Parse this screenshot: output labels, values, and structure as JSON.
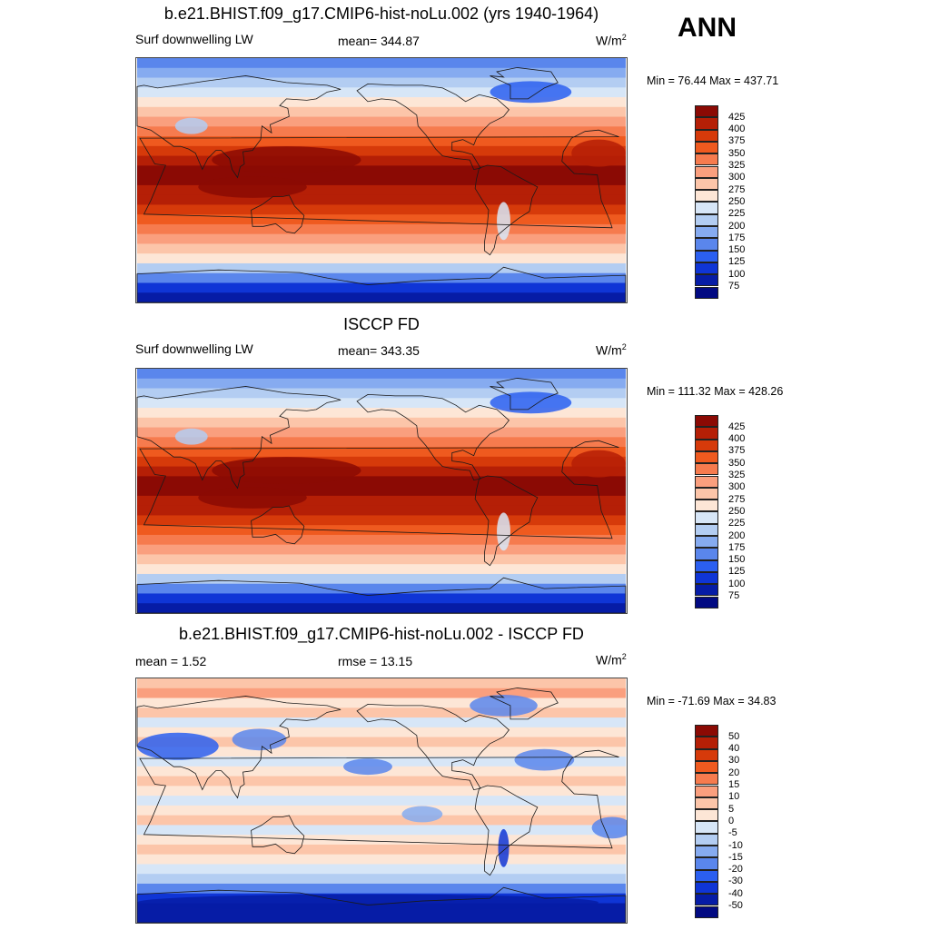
{
  "season": "ANN",
  "units_base": "W/m",
  "units_exp": "2",
  "panels": [
    {
      "title": "b.e21.BHIST.f09_g17.CMIP6-hist-noLu.002 (yrs 1940-1964)",
      "left_label": "Surf downwelling LW",
      "center_label": "mean= 344.87",
      "minmax": "Min =  76.44 Max = 437.71",
      "kind": "abs",
      "levels": [
        "425",
        "400",
        "375",
        "350",
        "325",
        "300",
        "275",
        "250",
        "225",
        "200",
        "175",
        "150",
        "125",
        "100",
        "75"
      ],
      "colors": [
        "#8b0a04",
        "#b51f06",
        "#d63a0a",
        "#ef5a1f",
        "#f67b4e",
        "#fa9f7e",
        "#fcc5a9",
        "#fde6d6",
        "#d7e6f7",
        "#b3cdf2",
        "#86abf0",
        "#5a86ec",
        "#2b5ff0",
        "#0f35d6",
        "#061ca6",
        "#020a82"
      ]
    },
    {
      "title": "ISCCP FD",
      "left_label": "Surf downwelling LW",
      "center_label": "mean= 343.35",
      "minmax": "Min = 111.32 Max = 428.26",
      "kind": "abs",
      "levels": [
        "425",
        "400",
        "375",
        "350",
        "325",
        "300",
        "275",
        "250",
        "225",
        "200",
        "175",
        "150",
        "125",
        "100",
        "75"
      ],
      "colors": [
        "#8b0a04",
        "#b51f06",
        "#d63a0a",
        "#ef5a1f",
        "#f67b4e",
        "#fa9f7e",
        "#fcc5a9",
        "#fde6d6",
        "#d7e6f7",
        "#b3cdf2",
        "#86abf0",
        "#5a86ec",
        "#2b5ff0",
        "#0f35d6",
        "#061ca6",
        "#020a82"
      ]
    },
    {
      "title": "b.e21.BHIST.f09_g17.CMIP6-hist-noLu.002 - ISCCP FD",
      "left_label": "mean =   1.52",
      "center_label": "rmse =  13.15",
      "minmax": "Min = -71.69 Max =  34.83",
      "kind": "diff",
      "levels": [
        "50",
        "40",
        "30",
        "20",
        "15",
        "10",
        "5",
        "0",
        "-5",
        "-10",
        "-15",
        "-20",
        "-30",
        "-40",
        "-50"
      ],
      "colors": [
        "#8b0a04",
        "#b51f06",
        "#d63a0a",
        "#ef5a1f",
        "#f67b4e",
        "#fa9f7e",
        "#fcc5a9",
        "#fde6d6",
        "#d7e6f7",
        "#b3cdf2",
        "#86abf0",
        "#5a86ec",
        "#2b5ff0",
        "#0f35d6",
        "#061ca6",
        "#020a82"
      ]
    }
  ]
}
